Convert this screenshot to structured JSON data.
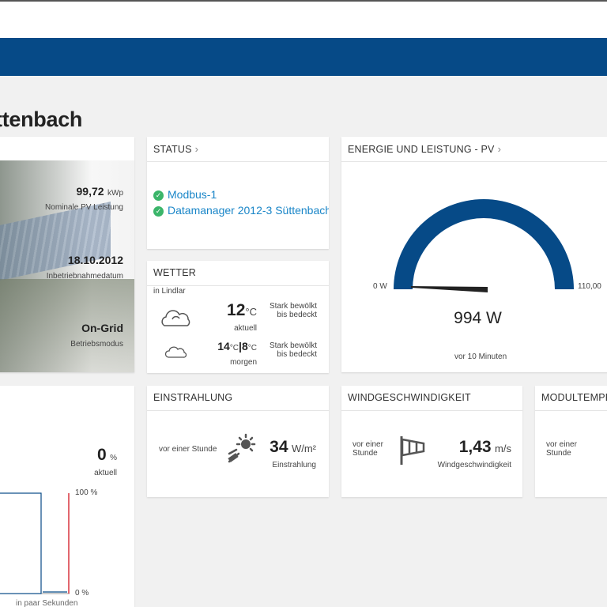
{
  "page": {
    "title": "ttenbach"
  },
  "plant_card": {
    "power": {
      "value": "99,72",
      "unit": "kWp",
      "label": "Nominale PV Leistung"
    },
    "date": {
      "value": "18.10.2012",
      "label": "Inbetriebnahmedatum"
    },
    "mode": {
      "value": "On-Grid",
      "label": "Betriebsmodus"
    }
  },
  "status_card": {
    "header": "STATUS",
    "items": [
      "Modbus-1",
      "Datamanager 2012-3 Süttenbach"
    ]
  },
  "weather_card": {
    "header": "WETTER",
    "location": "in Lindlar",
    "now": {
      "temp": "12",
      "unit": "°C",
      "label": "aktuell",
      "desc1": "Stark bewölkt",
      "desc2": "bis bedeckt"
    },
    "tomorrow": {
      "high": "14",
      "high_unit": "°C",
      "low": "8",
      "low_unit": "°C",
      "label": "morgen",
      "desc1": "Stark bewölkt",
      "desc2": "bis bedeckt"
    }
  },
  "energy_card": {
    "header": "ENERGIE UND LEISTUNG - PV",
    "min_label": "0 W",
    "max_label": "110,00",
    "value": "994 W",
    "subtitle": "vor 10 Minuten",
    "fill_fraction": 0.009
  },
  "left_chart_card": {
    "value": "0",
    "unit": "%",
    "label": "aktuell",
    "axis_top": "100 %",
    "axis_bottom": "0 %",
    "footnote": "in paar Sekunden"
  },
  "irradiation_card": {
    "header": "EINSTRAHLUNG",
    "time": "vor einer Stunde",
    "value": "34",
    "unit": "W/m²",
    "label": "Einstrahlung"
  },
  "wind_card": {
    "header": "WINDGESCHWINDIGKEIT",
    "time1": "vor einer",
    "time2": "Stunde",
    "value": "1,43",
    "unit": "m/s",
    "label": "Windgeschwindigkeit"
  },
  "module_card": {
    "header": "MODULTEMPE",
    "time1": "vor einer",
    "time2": "Stunde"
  },
  "colors": {
    "brand_blue": "#064a87",
    "link_blue": "#1a86c8",
    "ok_green": "#3bb56a",
    "chart_red": "#d9343e"
  }
}
